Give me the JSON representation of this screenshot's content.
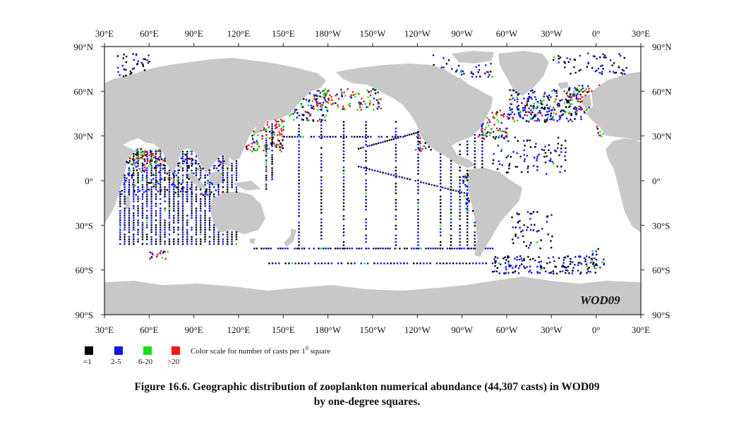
{
  "map": {
    "top_longitude_labels": [
      "30°E",
      "60°E",
      "90°E",
      "120°E",
      "150°E",
      "180°W",
      "150°W",
      "120°W",
      "90°W",
      "60°W",
      "30°W",
      "0°",
      "30°E"
    ],
    "bottom_longitude_labels": [
      "30°E",
      "60°E",
      "90°E",
      "120°E",
      "150°E",
      "180°W",
      "150°W",
      "120°W",
      "90°W",
      "60°W",
      "30°W",
      "0°",
      "30°E"
    ],
    "left_latitude_labels": [
      "90°N",
      "60°N",
      "30°N",
      "0°",
      "30°S",
      "60°S",
      "90°S"
    ],
    "right_latitude_labels": [
      "90°N",
      "60°N",
      "30°N",
      "0°",
      "30°S",
      "60°S",
      "90°S"
    ],
    "longitude_extent_deg": [
      30,
      390
    ],
    "latitude_extent_deg": [
      -90,
      90
    ],
    "land_color": "#c8c8c8",
    "ocean_color": "#ffffff",
    "watermark": "WOD09"
  },
  "legend": {
    "title": "Color scale for number of casts per 1° square",
    "title_main": "Color scale for number of casts per 1",
    "title_sup": "0",
    "title_end": " square",
    "bins": [
      {
        "label": "=1",
        "color": "#000000"
      },
      {
        "label": "2-5",
        "color": "#1414e6"
      },
      {
        "label": "6-20",
        "color": "#18e018"
      },
      {
        "label": ">20",
        "color": "#ee1a1a"
      }
    ]
  },
  "caption": {
    "line1": "Figure 16.6. Geographic distribution of zooplankton numerical abundance (44,307 casts) in WOD09",
    "line2": "by one-degree squares."
  }
}
